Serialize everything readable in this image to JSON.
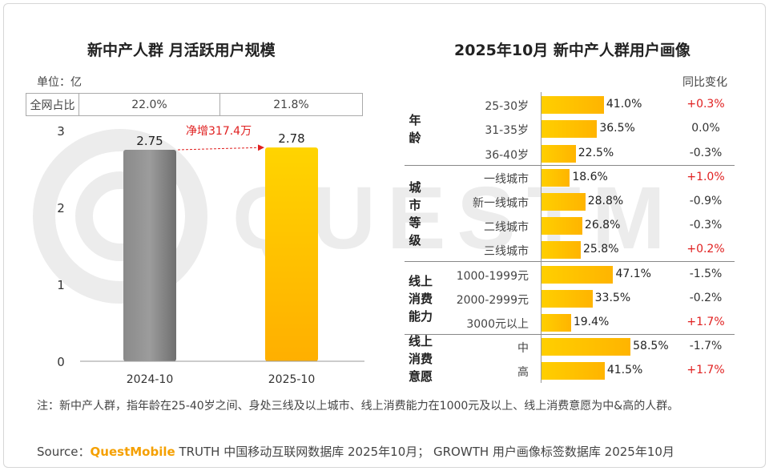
{
  "left": {
    "title": "新中产人群 月活跃用户规模",
    "unit": "单位：亿",
    "share_label": "全网占比",
    "shares": [
      "22.0%",
      "21.8%"
    ],
    "increase_label": "净增317.4万"
  },
  "right": {
    "title": "2025年10月 新中产人群用户画像",
    "yoy_header": "同比变化",
    "groups": [
      {
        "label": "年龄",
        "rows": [
          {
            "label": "25-30岁",
            "value": "41.0%",
            "v": 41.0,
            "change": "+0.3%",
            "up": true
          },
          {
            "label": "31-35岁",
            "value": "36.5%",
            "v": 36.5,
            "change": "0.0%",
            "up": false
          },
          {
            "label": "36-40岁",
            "value": "22.5%",
            "v": 22.5,
            "change": "-0.3%",
            "up": false
          }
        ]
      },
      {
        "label": "城市等级",
        "rows": [
          {
            "label": "一线城市",
            "value": "18.6%",
            "v": 18.6,
            "change": "+1.0%",
            "up": true
          },
          {
            "label": "新一线城市",
            "value": "28.8%",
            "v": 28.8,
            "change": "-0.9%",
            "up": false
          },
          {
            "label": "二线城市",
            "value": "26.8%",
            "v": 26.8,
            "change": "-0.3%",
            "up": false
          },
          {
            "label": "三线城市",
            "value": "25.8%",
            "v": 25.8,
            "change": "+0.2%",
            "up": true
          }
        ]
      },
      {
        "label": "线上消费能力",
        "rows": [
          {
            "label": "1000-1999元",
            "value": "47.1%",
            "v": 47.1,
            "change": "-1.5%",
            "up": false
          },
          {
            "label": "2000-2999元",
            "value": "33.5%",
            "v": 33.5,
            "change": "-0.2%",
            "up": false
          },
          {
            "label": "3000元以上",
            "value": "19.4%",
            "v": 19.4,
            "change": "+1.7%",
            "up": true
          }
        ]
      },
      {
        "label": "线上消费意愿",
        "rows": [
          {
            "label": "中",
            "value": "58.5%",
            "v": 58.5,
            "change": "-1.7%",
            "up": false
          },
          {
            "label": "高",
            "value": "41.5%",
            "v": 41.5,
            "change": "+1.7%",
            "up": true
          }
        ]
      }
    ]
  },
  "footer": {
    "note": "注：新中产人群，指年龄在25-40岁之间、身处三线及以上城市、线上消费能力在1000元及以上、线上消费意愿为中&高的人群。",
    "source_prefix": "Source：",
    "source_brand": "QuestMobile",
    "source_text": " TRUTH 中国移动互联网数据库 2025年10月； GROWTH 用户画像标签数据库 2025年10月"
  },
  "watermark_text": "QUESTMOBILE",
  "colors": {
    "bar_grey": "#7a7a7a",
    "bar_yellow": "#ffbf00",
    "up_red": "#e02020",
    "brand_orange": "#f5a000"
  },
  "chart_data": [
    {
      "type": "bar",
      "title": "新中产人群 月活跃用户规模",
      "categories": [
        "2024-10",
        "2025-10"
      ],
      "values": [
        2.75,
        2.78
      ],
      "ylim": [
        0,
        3
      ],
      "yticks": [
        0,
        1,
        2,
        3
      ],
      "annotation": "净增317.4万"
    },
    {
      "type": "bar",
      "orientation": "horizontal",
      "title": "2025年10月 新中产人群用户画像",
      "categories": [
        "25-30岁",
        "31-35岁",
        "36-40岁",
        "一线城市",
        "新一线城市",
        "二线城市",
        "三线城市",
        "1000-1999元",
        "2000-2999元",
        "3000元以上",
        "中",
        "高"
      ],
      "values": [
        41.0,
        36.5,
        22.5,
        18.6,
        28.8,
        26.8,
        25.8,
        47.1,
        33.5,
        19.4,
        58.5,
        41.5
      ],
      "yoy_change": [
        "+0.3%",
        "0.0%",
        "-0.3%",
        "+1.0%",
        "-0.9%",
        "-0.3%",
        "+0.2%",
        "-1.5%",
        "-0.2%",
        "+1.7%",
        "-1.7%",
        "+1.7%"
      ]
    }
  ]
}
